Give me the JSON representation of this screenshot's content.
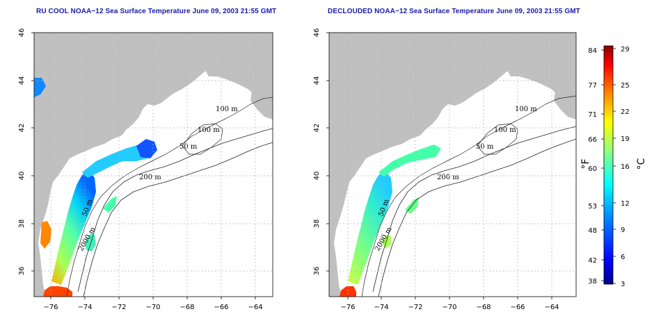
{
  "maps": [
    {
      "title": "RU COOL NOAA−12 Sea Surface Temperature June 09, 2003 21:55 GMT",
      "contour_labels": [
        "100 m",
        "100 m",
        "50 m",
        "200 m",
        "50 m",
        "2000 m"
      ]
    },
    {
      "title": "DECLOUDED NOAA−12 Sea Surface Temperature June 09, 2003 21:55 GMT",
      "contour_labels": [
        "100 m",
        "100 m",
        "50 m",
        "200 m",
        "50 m",
        "2000 m"
      ]
    }
  ],
  "axes": {
    "lon_ticks": [
      "−76",
      "−74",
      "−72",
      "−70",
      "−68",
      "−66",
      "−64"
    ],
    "lat_ticks": [
      "36",
      "38",
      "40",
      "42",
      "44",
      "46"
    ]
  },
  "colorbar": {
    "f_label": "°F",
    "c_label": "°C",
    "f_ticks": [
      "84",
      "77",
      "71",
      "66",
      "60",
      "53",
      "48",
      "42",
      "38"
    ],
    "c_ticks": [
      "29",
      "25",
      "22",
      "19",
      "16",
      "12",
      "9",
      "6",
      "3"
    ],
    "colors": [
      "#000088",
      "#0000ff",
      "#0088ff",
      "#00ffff",
      "#88ff88",
      "#ffff00",
      "#ff8800",
      "#ff0000",
      "#880000"
    ]
  },
  "colors": {
    "land": "#c0c0c0",
    "ocean": "#ffffff",
    "title": "#1a1aa8"
  }
}
